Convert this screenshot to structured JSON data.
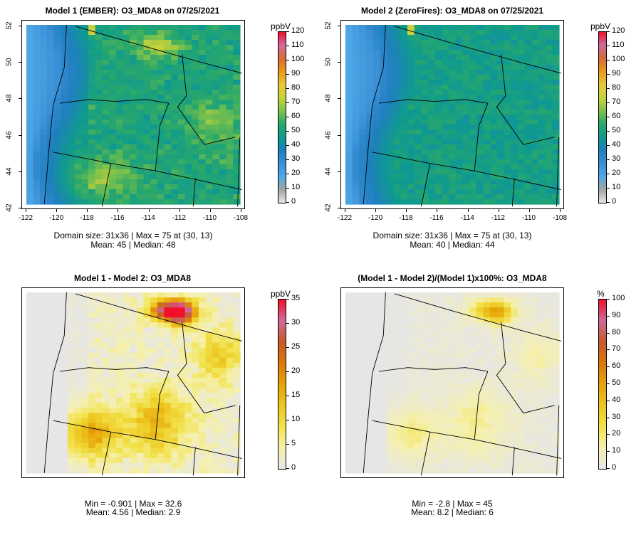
{
  "panels": [
    {
      "title": "Model 1 (EMBER): O3_MDA8 on 07/25/2021",
      "unit": "ppbV",
      "stats": [
        "Domain size: 31x36 | Max = 75 at (30, 13)",
        "Mean: 45 |  Median: 48"
      ],
      "colorbar": {
        "ticks": [
          "0",
          "10",
          "20",
          "30",
          "40",
          "50",
          "60",
          "70",
          "80",
          "90",
          "100",
          "110",
          "120"
        ],
        "colors": [
          "#e6e6e6",
          "#a3a3a3",
          "#4fa8e6",
          "#3a8fd6",
          "#1f7fbf",
          "#0f9a8f",
          "#2aa86a",
          "#7fc24a",
          "#c8d23a",
          "#e6c83a",
          "#e89a1a",
          "#d86a3a",
          "#cf6aa0",
          "#f0102a"
        ]
      },
      "axes": {
        "xticks": [
          "-122",
          "-120",
          "-118",
          "-116",
          "-114",
          "-112",
          "-110",
          "-108"
        ],
        "yticks": [
          "42",
          "44",
          "46",
          "48",
          "50",
          "52"
        ]
      }
    },
    {
      "title": "Model 2 (ZeroFires): O3_MDA8 on 07/25/2021",
      "unit": "ppbV",
      "stats": [
        "Domain size: 31x36 | Max = 75 at (30, 13)",
        "Mean: 40 |  Median: 44"
      ],
      "colorbar": {
        "ticks": [
          "0",
          "10",
          "20",
          "30",
          "40",
          "50",
          "60",
          "70",
          "80",
          "90",
          "100",
          "110",
          "120"
        ],
        "colors": [
          "#e6e6e6",
          "#a3a3a3",
          "#4fa8e6",
          "#3a8fd6",
          "#1f7fbf",
          "#0f9a8f",
          "#2aa86a",
          "#7fc24a",
          "#c8d23a",
          "#e6c83a",
          "#e89a1a",
          "#d86a3a",
          "#cf6aa0",
          "#f0102a"
        ]
      },
      "axes": {
        "xticks": [
          "-122",
          "-120",
          "-118",
          "-116",
          "-114",
          "-112",
          "-110",
          "-108"
        ],
        "yticks": [
          "42",
          "44",
          "46",
          "48",
          "50",
          "52"
        ]
      }
    },
    {
      "title": "Model 1 - Model 2: O3_MDA8",
      "unit": "ppbV",
      "stats": [
        "Min = -0.901 | Max = 32.6",
        "Mean: 4.56 |  Median: 2.9"
      ],
      "colorbar": {
        "ticks": [
          "0",
          "5",
          "10",
          "15",
          "20",
          "25",
          "30",
          "35"
        ],
        "colors": [
          "#e6e6e6",
          "#f5f0b0",
          "#f2e24a",
          "#edc51e",
          "#e6a20a",
          "#d9780c",
          "#c85a2a",
          "#cf6a9a",
          "#f0102a"
        ]
      },
      "axes": {
        "xticks": [],
        "yticks": []
      }
    },
    {
      "title": "(Model 1 - Model 2)/(Model 1)x100%: O3_MDA8",
      "unit": "%",
      "stats": [
        "Min = -2.8 | Max = 45",
        "Mean: 8.2 |  Median: 6"
      ],
      "colorbar": {
        "ticks": [
          "0",
          "10",
          "20",
          "30",
          "40",
          "50",
          "60",
          "70",
          "80",
          "90",
          "100"
        ],
        "colors": [
          "#e6e6e6",
          "#f5f0b0",
          "#f2e24a",
          "#edc51e",
          "#e6a20a",
          "#d9780c",
          "#c85a2a",
          "#cf6a9a",
          "#f0102a"
        ]
      },
      "axes": {
        "xticks": [],
        "yticks": []
      }
    }
  ],
  "chart_data": [
    {
      "type": "heatmap",
      "title": "Model 1 (EMBER): O3_MDA8 on 07/25/2021",
      "xlim": [
        -122,
        -108
      ],
      "ylim": [
        42,
        52
      ],
      "colorbar_label": "ppbV",
      "colorbar_range": [
        0,
        120
      ],
      "grid_size": "31x36",
      "max": 75,
      "max_location": [
        30,
        13
      ],
      "mean": 45,
      "median": 48
    },
    {
      "type": "heatmap",
      "title": "Model 2 (ZeroFires): O3_MDA8 on 07/25/2021",
      "xlim": [
        -122,
        -108
      ],
      "ylim": [
        42,
        52
      ],
      "colorbar_label": "ppbV",
      "colorbar_range": [
        0,
        120
      ],
      "grid_size": "31x36",
      "max": 75,
      "max_location": [
        30,
        13
      ],
      "mean": 40,
      "median": 44
    },
    {
      "type": "heatmap",
      "title": "Model 1 - Model 2: O3_MDA8",
      "colorbar_label": "ppbV",
      "colorbar_range": [
        0,
        35
      ],
      "min": -0.901,
      "max": 32.6,
      "mean": 4.56,
      "median": 2.9
    },
    {
      "type": "heatmap",
      "title": "(Model 1 - Model 2)/(Model 1)x100%: O3_MDA8",
      "colorbar_label": "%",
      "colorbar_range": [
        0,
        100
      ],
      "min": -2.8,
      "max": 45,
      "mean": 8.2,
      "median": 6
    }
  ]
}
